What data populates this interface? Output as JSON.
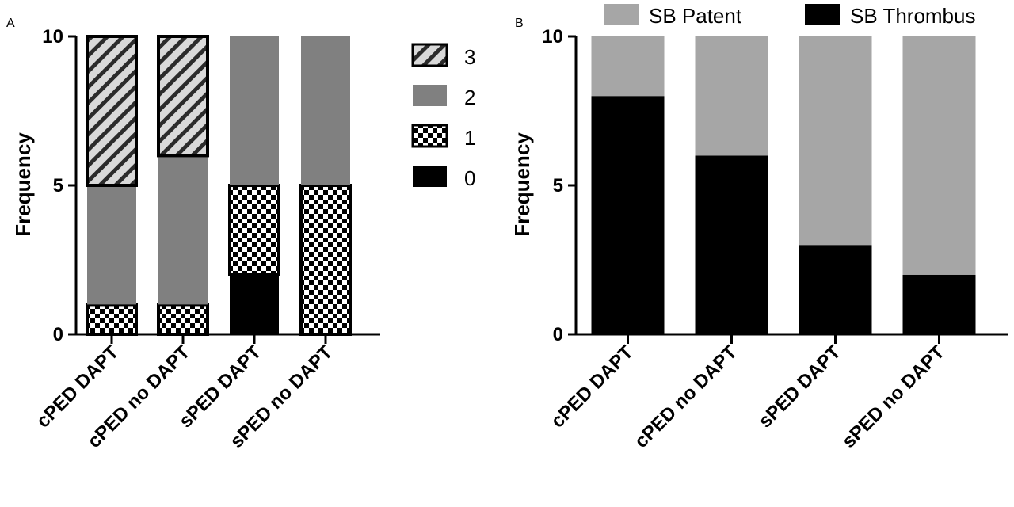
{
  "colors": {
    "level_3_fill": "#d9d9d9",
    "level_3_stripe": "#2b2b2b",
    "level_2": "#808080",
    "level_1_light": "#ffffff",
    "level_1_dark": "#000000",
    "level_0": "#000000",
    "sb_patent": "#a6a6a6",
    "sb_thrombus": "#000000"
  },
  "chart_data": [
    {
      "panel": "A",
      "type": "bar",
      "stacked": true,
      "ylabel": "Frequency",
      "ylim": [
        0,
        10
      ],
      "yticks": [
        0,
        5,
        10
      ],
      "categories": [
        "cPED DAPT",
        "cPED no DAPT",
        "sPED DAPT",
        "sPED no DAPT"
      ],
      "series": [
        {
          "name": "0",
          "pattern": "solid-black",
          "values": [
            0,
            0,
            2,
            0
          ]
        },
        {
          "name": "1",
          "pattern": "checker",
          "values": [
            1,
            1,
            3,
            5
          ]
        },
        {
          "name": "2",
          "pattern": "solid-gray",
          "values": [
            4,
            5,
            5,
            5
          ]
        },
        {
          "name": "3",
          "pattern": "diagonal-stripe",
          "values": [
            5,
            4,
            0,
            0
          ]
        }
      ],
      "legend": [
        "3",
        "2",
        "1",
        "0"
      ],
      "legend_position": "right"
    },
    {
      "panel": "B",
      "type": "bar",
      "stacked": true,
      "ylabel": "Frequency",
      "ylim": [
        0,
        10
      ],
      "yticks": [
        0,
        5,
        10
      ],
      "categories": [
        "cPED DAPT",
        "cPED no DAPT",
        "sPED DAPT",
        "sPED no DAPT"
      ],
      "series": [
        {
          "name": "SB Thrombus",
          "values": [
            8,
            6,
            3,
            2
          ]
        },
        {
          "name": "SB Patent",
          "values": [
            2,
            4,
            7,
            8
          ]
        }
      ],
      "legend": [
        "SB Patent",
        "SB Thrombus"
      ],
      "legend_position": "top"
    }
  ]
}
